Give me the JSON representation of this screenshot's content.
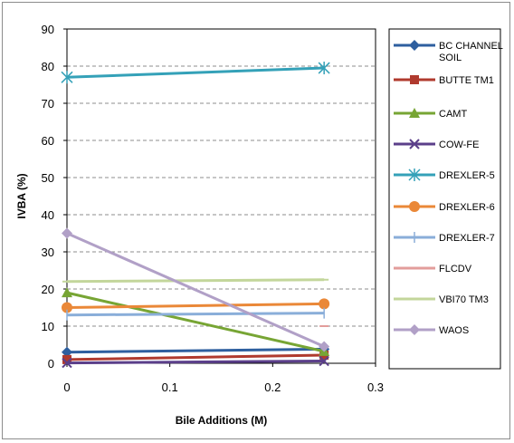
{
  "chart_data": {
    "type": "line",
    "title": "",
    "xlabel": "Bile Additions (M)",
    "ylabel": "IVBA (%)",
    "xlim": [
      0,
      0.3
    ],
    "ylim": [
      0,
      90
    ],
    "x_ticks": [
      "0",
      "0.1",
      "0.2",
      "0.3"
    ],
    "y_ticks": [
      "0",
      "10",
      "20",
      "30",
      "40",
      "50",
      "60",
      "70",
      "80",
      "90"
    ],
    "grid": "horizontal dashed",
    "legend_position": "right",
    "series": [
      {
        "name": "BC CHANNEL SOIL",
        "color": "#2e5f9f",
        "marker": "diamond",
        "x": [
          0,
          0.25
        ],
        "y": [
          3,
          3.8
        ]
      },
      {
        "name": "BUTTE TM1",
        "color": "#b03a2e",
        "marker": "square",
        "x": [
          0,
          0.25
        ],
        "y": [
          1,
          2.2
        ]
      },
      {
        "name": "CAMT",
        "color": "#77a534",
        "marker": "triangle",
        "x": [
          0,
          0.25
        ],
        "y": [
          19,
          3.2
        ]
      },
      {
        "name": "COW-FE",
        "color": "#5b3f8a",
        "marker": "x",
        "x": [
          0,
          0.25
        ],
        "y": [
          0.1,
          0.6
        ]
      },
      {
        "name": "DREXLER-5",
        "color": "#34a1b8",
        "marker": "asterisk",
        "x": [
          0,
          0.25
        ],
        "y": [
          77,
          79.5
        ]
      },
      {
        "name": "DREXLER-6",
        "color": "#ea8838",
        "marker": "circle",
        "x": [
          0,
          0.25
        ],
        "y": [
          15,
          16
        ]
      },
      {
        "name": "DREXLER-7",
        "color": "#8aaed9",
        "marker": "plus",
        "x": [
          0,
          0.25
        ],
        "y": [
          13,
          13.5
        ]
      },
      {
        "name": "FLCDV",
        "color": "#e39d9b",
        "marker": "dash",
        "x": [
          0,
          0.25
        ],
        "y": [
          null,
          10
        ]
      },
      {
        "name": "VBI70 TM3",
        "color": "#c3d69b",
        "marker": "dash",
        "x": [
          0,
          0.25
        ],
        "y": [
          22,
          22.5
        ]
      },
      {
        "name": "WAOS",
        "color": "#b1a0c7",
        "marker": "diamond",
        "x": [
          0,
          0.25
        ],
        "y": [
          35,
          4.5
        ]
      }
    ]
  }
}
